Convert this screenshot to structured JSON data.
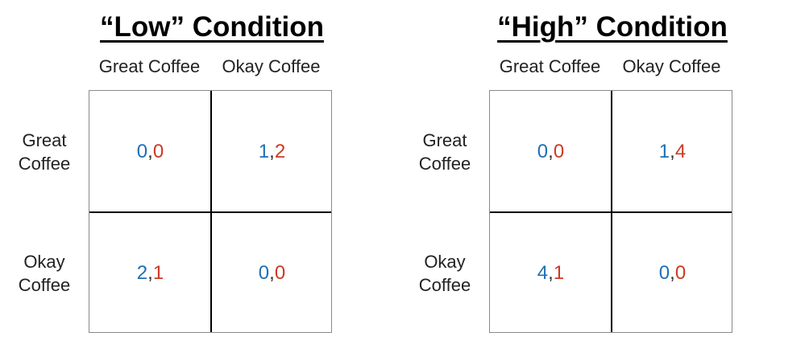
{
  "colors": {
    "row_player": "#1f6fb5",
    "col_player": "#cc3a22"
  },
  "matrices": [
    {
      "title": "“Low” Condition",
      "col_labels": [
        "Great Coffee",
        "Okay Coffee"
      ],
      "row_labels": [
        [
          "Great",
          "Coffee"
        ],
        [
          "Okay",
          "Coffee"
        ]
      ],
      "cells": [
        [
          {
            "a": "0",
            "b": "0"
          },
          {
            "a": "1",
            "b": "2"
          }
        ],
        [
          {
            "a": "2",
            "b": "1"
          },
          {
            "a": "0",
            "b": "0"
          }
        ]
      ]
    },
    {
      "title": "“High” Condition",
      "col_labels": [
        "Great Coffee",
        "Okay Coffee"
      ],
      "row_labels": [
        [
          "Great",
          "Coffee"
        ],
        [
          "Okay",
          "Coffee"
        ]
      ],
      "cells": [
        [
          {
            "a": "0",
            "b": "0"
          },
          {
            "a": "1",
            "b": "4"
          }
        ],
        [
          {
            "a": "4",
            "b": "1"
          },
          {
            "a": "0",
            "b": "0"
          }
        ]
      ]
    }
  ],
  "separator": ","
}
